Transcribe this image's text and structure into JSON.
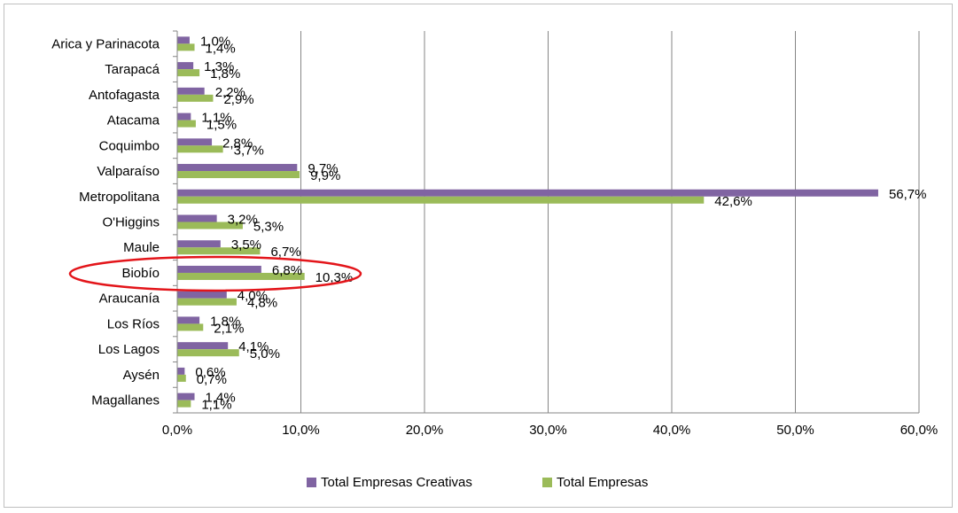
{
  "chart_data": {
    "type": "bar",
    "orientation": "horizontal",
    "categories": [
      "Arica y Parinacota",
      "Tarapacá",
      "Antofagasta",
      "Atacama",
      "Coquimbo",
      "Valparaíso",
      "Metropolitana",
      "O'Higgins",
      "Maule",
      "Biobío",
      "Araucanía",
      "Los Ríos",
      "Los Lagos",
      "Aysén",
      "Magallanes"
    ],
    "series": [
      {
        "name": "Total Empresas Creativas",
        "color": "#8064a2",
        "values": [
          1.0,
          1.3,
          2.2,
          1.1,
          2.8,
          9.7,
          56.7,
          3.2,
          3.5,
          6.8,
          4.0,
          1.8,
          4.1,
          0.6,
          1.4
        ],
        "labels": [
          "1,0%",
          "1,3%",
          "2,2%",
          "1,1%",
          "2,8%",
          "9,7%",
          "56,7%",
          "3,2%",
          "3,5%",
          "6,8%",
          "4,0%",
          "1,8%",
          "4,1%",
          "0,6%",
          "1,4%"
        ]
      },
      {
        "name": "Total Empresas",
        "color": "#9bbb59",
        "values": [
          1.4,
          1.8,
          2.9,
          1.5,
          3.7,
          9.9,
          42.6,
          5.3,
          6.7,
          10.3,
          4.8,
          2.1,
          5.0,
          0.7,
          1.1
        ],
        "labels": [
          "1,4%",
          "1,8%",
          "2,9%",
          "1,5%",
          "3,7%",
          "9,9%",
          "42,6%",
          "5,3%",
          "6,7%",
          "10,3%",
          "4,8%",
          "2,1%",
          "5,0%",
          "0,7%",
          "1,1%"
        ]
      }
    ],
    "xlim": [
      0,
      60
    ],
    "xticks": [
      0,
      10,
      20,
      30,
      40,
      50,
      60
    ],
    "xtick_labels": [
      "0,0%",
      "10,0%",
      "20,0%",
      "30,0%",
      "40,0%",
      "50,0%",
      "60,0%"
    ],
    "grid": "vertical",
    "legend_position": "bottom",
    "highlight": {
      "category": "Biobío",
      "shape": "ellipse",
      "color": "#e3151a"
    }
  }
}
